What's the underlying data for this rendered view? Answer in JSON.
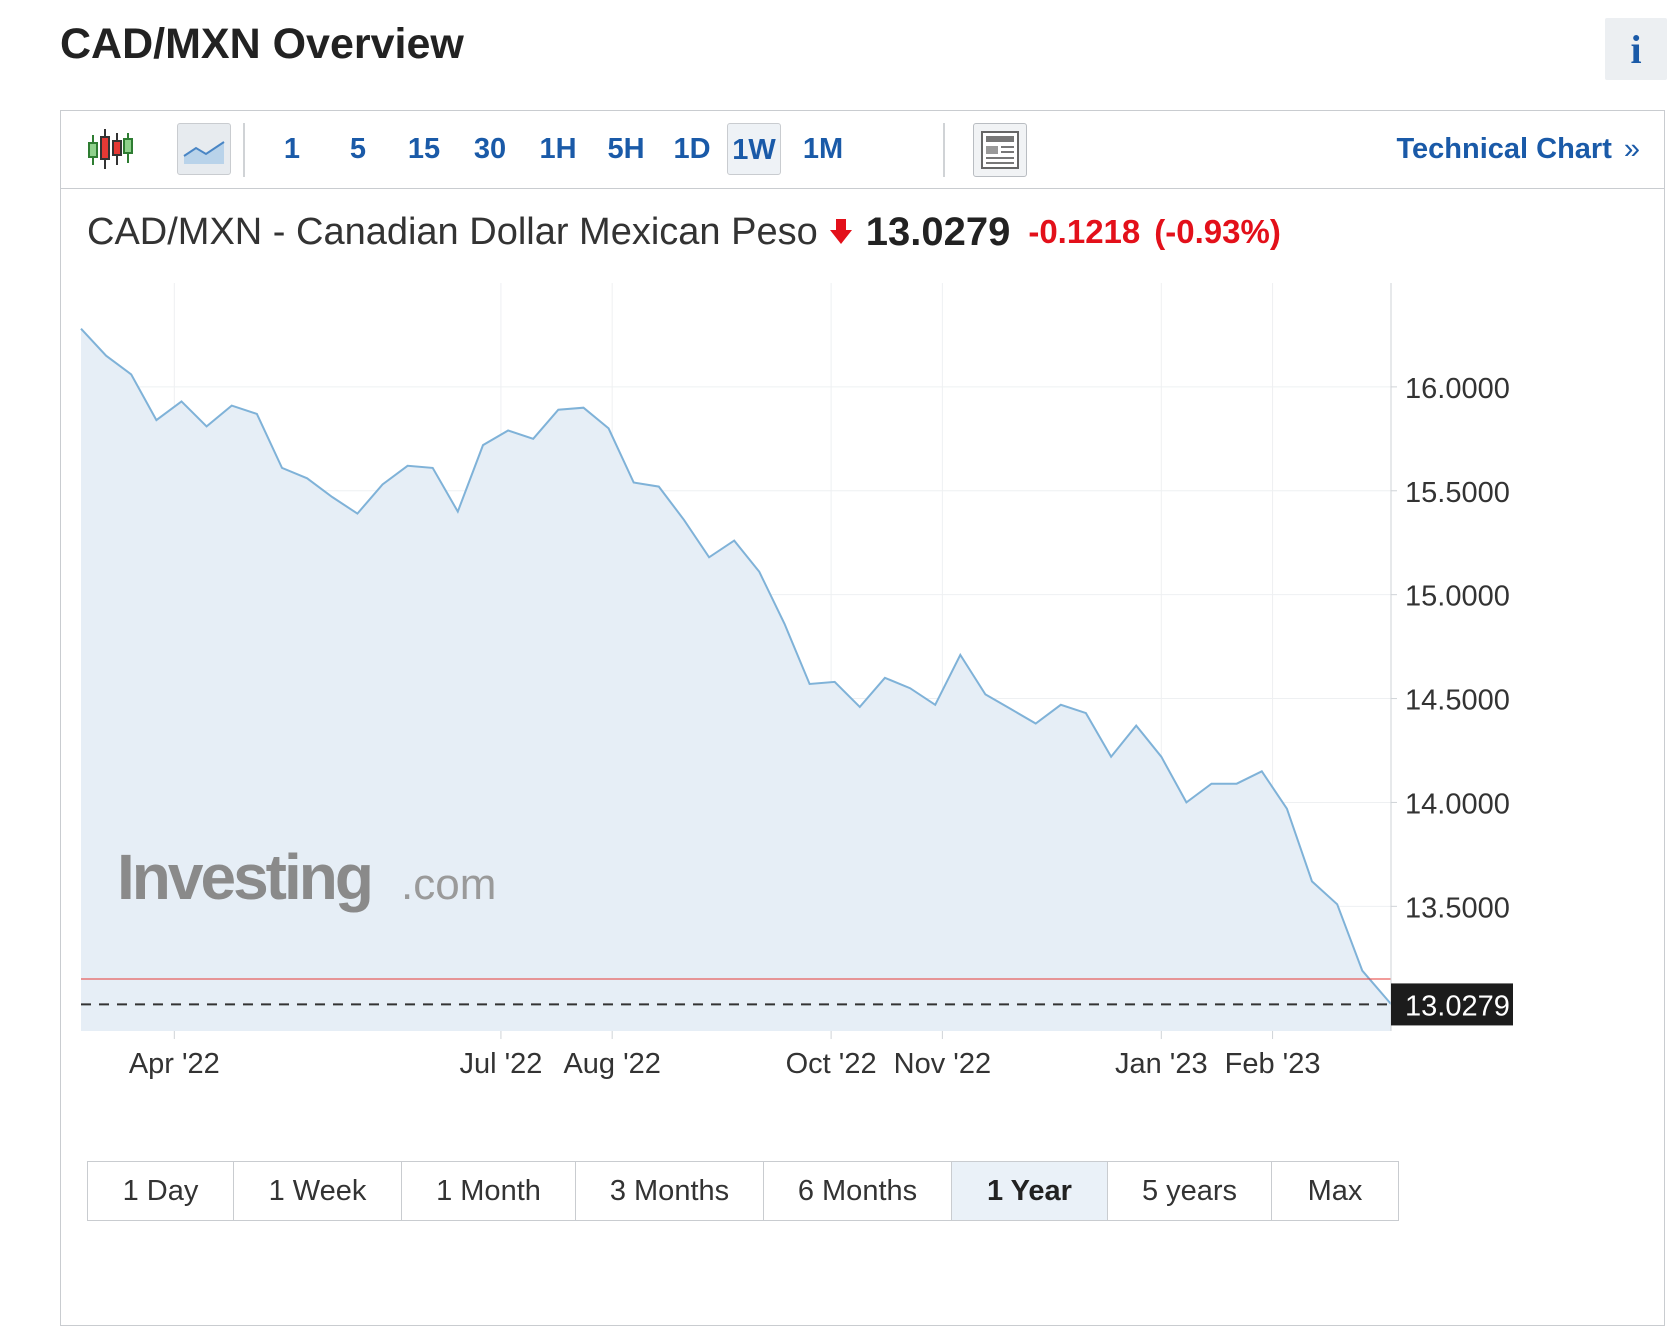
{
  "page": {
    "title": "CAD/MXN Overview",
    "info_label": "i"
  },
  "toolbar": {
    "intervals": [
      "1",
      "5",
      "15",
      "30",
      "1H",
      "5H",
      "1D",
      "1W",
      "1M"
    ],
    "active_interval": "1W",
    "technical_chart_label": "Technical Chart",
    "technical_chart_chevron": "»",
    "icons": [
      "candlestick-chart-icon",
      "line-chart-icon",
      "news-layout-icon"
    ]
  },
  "quote": {
    "pair": "CAD/MXN - Canadian Dollar Mexican Peso",
    "price": "13.0279",
    "change": "-0.1218",
    "change_pct": "(-0.93%)",
    "direction": "down",
    "down_color": "#e3101a"
  },
  "chart_data": {
    "type": "area",
    "title": "",
    "xlabel": "",
    "ylabel": "",
    "ylim": [
      12.9,
      16.5
    ],
    "yticks": [
      "16.0000",
      "15.5000",
      "15.0000",
      "14.5000",
      "14.0000",
      "13.5000"
    ],
    "ytick_values": [
      16.0,
      15.5,
      15.0,
      14.5,
      14.0,
      13.5
    ],
    "xticks": [
      "Apr '22",
      "Jul '22",
      "Aug '22",
      "Oct '22",
      "Nov '22",
      "Jan '23",
      "Feb '23"
    ],
    "xtick_dates": [
      "2022-04-01",
      "2022-07-01",
      "2022-08-01",
      "2022-10-01",
      "2022-11-01",
      "2023-01-01",
      "2023-02-01"
    ],
    "x_range": [
      "2022-03-06",
      "2023-03-06"
    ],
    "current_value": 13.0279,
    "current_label": "13.0279",
    "reference_line_value": 13.15,
    "line_color": "#7fb2d8",
    "fill_color": "#e6eef6",
    "reference_line_color": "#e53935",
    "grid": true,
    "watermark": "Investing.com",
    "series": [
      {
        "dates": [
          "2022-03-06",
          "2022-03-13",
          "2022-03-20",
          "2022-03-27",
          "2022-04-03",
          "2022-04-10",
          "2022-04-17",
          "2022-04-24",
          "2022-05-01",
          "2022-05-08",
          "2022-05-15",
          "2022-05-22",
          "2022-05-29",
          "2022-06-05",
          "2022-06-12",
          "2022-06-19",
          "2022-06-26",
          "2022-07-03",
          "2022-07-10",
          "2022-07-17",
          "2022-07-24",
          "2022-07-31",
          "2022-08-07",
          "2022-08-14",
          "2022-08-21",
          "2022-08-28",
          "2022-09-04",
          "2022-09-11",
          "2022-09-18",
          "2022-09-25",
          "2022-10-02",
          "2022-10-09",
          "2022-10-16",
          "2022-10-23",
          "2022-10-30",
          "2022-11-06",
          "2022-11-13",
          "2022-11-20",
          "2022-11-27",
          "2022-12-04",
          "2022-12-11",
          "2022-12-18",
          "2022-12-25",
          "2023-01-01",
          "2023-01-08",
          "2023-01-15",
          "2023-01-22",
          "2023-01-29",
          "2023-02-05",
          "2023-02-12",
          "2023-02-19",
          "2023-02-26",
          "2023-03-06"
        ],
        "values": [
          16.28,
          16.15,
          16.06,
          15.84,
          15.93,
          15.81,
          15.91,
          15.87,
          15.61,
          15.56,
          15.47,
          15.39,
          15.53,
          15.62,
          15.61,
          15.4,
          15.72,
          15.79,
          15.75,
          15.89,
          15.9,
          15.8,
          15.54,
          15.52,
          15.36,
          15.18,
          15.26,
          15.11,
          14.86,
          14.57,
          14.58,
          14.46,
          14.6,
          14.55,
          14.47,
          14.71,
          14.52,
          14.45,
          14.38,
          14.47,
          14.43,
          14.22,
          14.37,
          14.22,
          14.0,
          14.09,
          14.09,
          14.15,
          13.97,
          13.62,
          13.51,
          13.19,
          13.03
        ]
      }
    ]
  },
  "ranges": {
    "items": [
      "1 Day",
      "1 Week",
      "1 Month",
      "3 Months",
      "6 Months",
      "1 Year",
      "5 years",
      "Max"
    ],
    "active": "1 Year"
  }
}
